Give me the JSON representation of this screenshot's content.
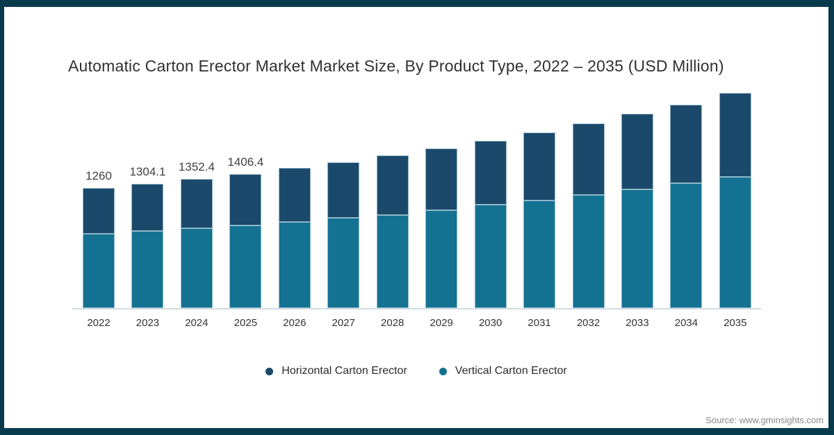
{
  "title": "Automatic Carton Erector Market Market Size, By Product Type, 2022 – 2035 (USD Million)",
  "source": "Source: www.gminsights.com",
  "frame": {
    "border_color": "#073b4c",
    "background": "#ffffff"
  },
  "legend": [
    {
      "label": "Horizontal Carton Erector",
      "color": "#1b496b"
    },
    {
      "label": "Vertical Carton Erector",
      "color": "#137191"
    }
  ],
  "chart_data": {
    "type": "bar",
    "stacked": true,
    "title": "Automatic Carton Erector Market Market Size, By Product Type, 2022 – 2035 (USD Million)",
    "xlabel": "",
    "ylabel": "",
    "categories": [
      "2022",
      "2023",
      "2024",
      "2025",
      "2026",
      "2027",
      "2028",
      "2029",
      "2030",
      "2031",
      "2032",
      "2033",
      "2034",
      "2035"
    ],
    "series": [
      {
        "name": "Horizontal Carton Erector",
        "color": "#1b496b",
        "values": [
          480,
          498.1,
          518.4,
          540.4,
          565,
          586,
          623,
          648,
          673,
          714,
          750,
          796,
          826,
          878
        ]
      },
      {
        "name": "Vertical Carton Erector",
        "color": "#137191",
        "values": [
          780,
          806,
          834,
          866,
          902,
          944,
          975,
          1024,
          1082,
          1126,
          1182,
          1242,
          1307,
          1376
        ]
      }
    ],
    "totals": [
      1260,
      1304.1,
      1352.4,
      1406.4,
      1467,
      1530,
      1598,
      1672,
      1755,
      1840,
      1932,
      2038,
      2133,
      2254
    ],
    "data_labels": [
      "1260",
      "1304.1",
      "1352.4",
      "1406.4"
    ],
    "ylim": [
      0,
      2300
    ],
    "grid": false,
    "legend_position": "bottom",
    "axis_line_color": "#cfdce3",
    "bar_border_color": "#a5c8d6",
    "label_color": "#404040"
  }
}
